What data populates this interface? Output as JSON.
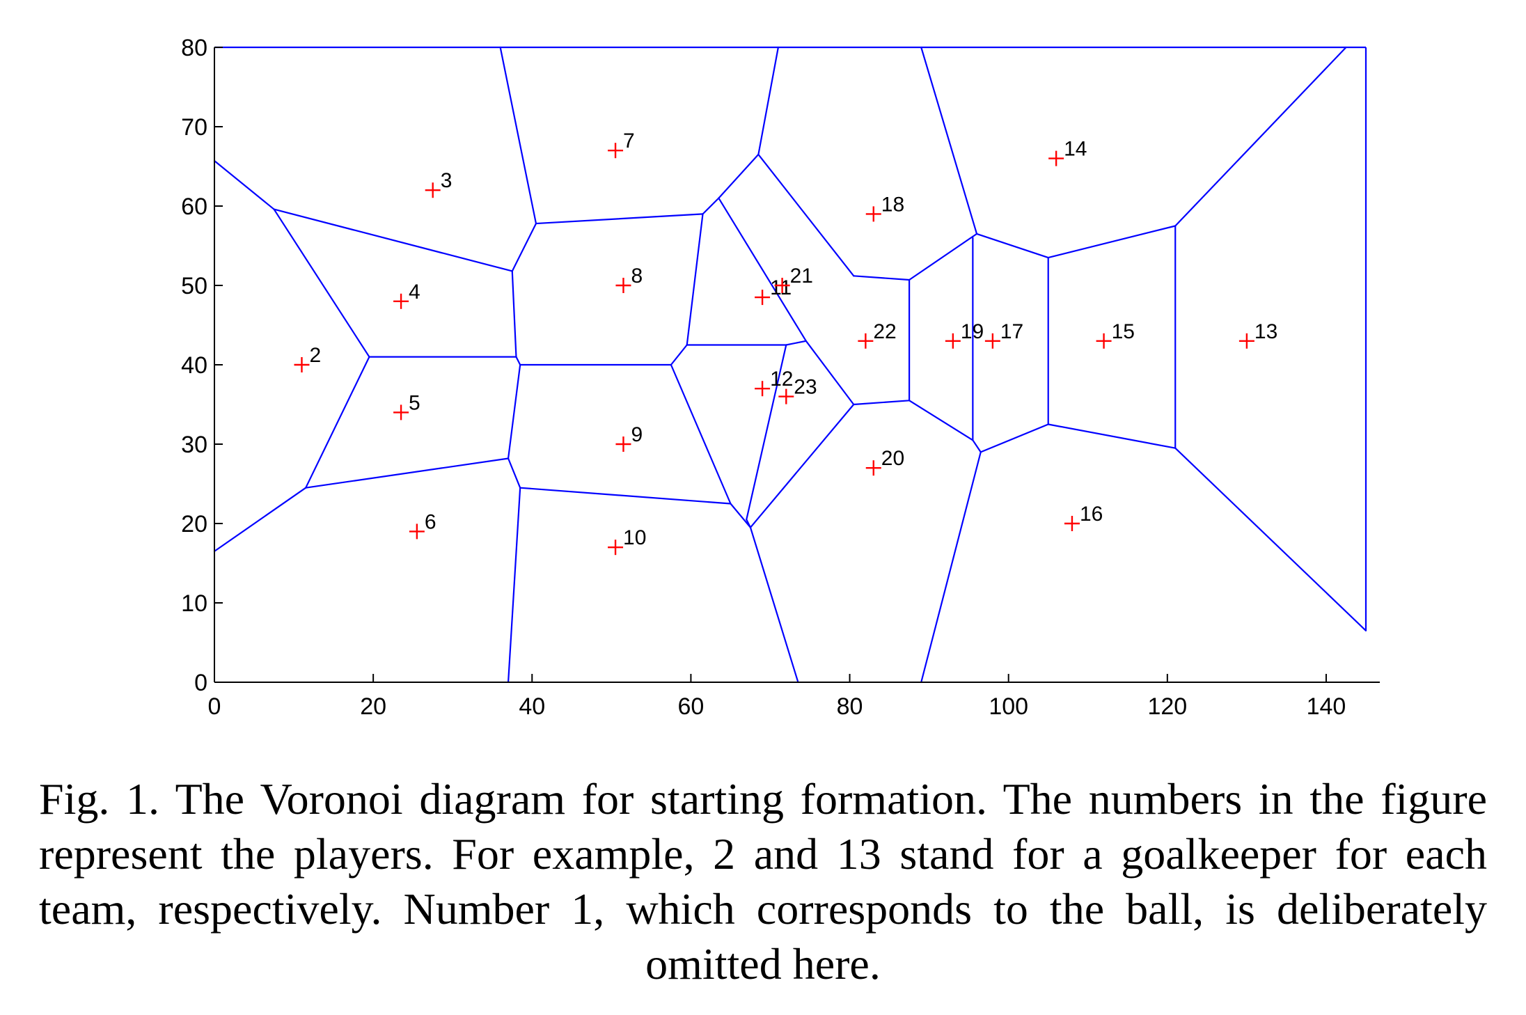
{
  "chart_data": {
    "type": "scatter",
    "title": "",
    "xlabel": "",
    "ylabel": "",
    "xlim": [
      0,
      145
    ],
    "ylim": [
      0,
      80
    ],
    "xticks": [
      0,
      20,
      40,
      60,
      80,
      100,
      120,
      140
    ],
    "yticks": [
      0,
      10,
      20,
      30,
      40,
      50,
      60,
      70,
      80
    ],
    "grid": false,
    "colors": {
      "points": "#ff0000",
      "edges": "#0000ff",
      "axes": "#000000"
    },
    "points": [
      {
        "label": "2",
        "x": 11,
        "y": 40
      },
      {
        "label": "3",
        "x": 27.5,
        "y": 62
      },
      {
        "label": "4",
        "x": 23.5,
        "y": 48
      },
      {
        "label": "5",
        "x": 23.5,
        "y": 34
      },
      {
        "label": "6",
        "x": 25.5,
        "y": 19
      },
      {
        "label": "7",
        "x": 50.5,
        "y": 67
      },
      {
        "label": "8",
        "x": 51.5,
        "y": 50
      },
      {
        "label": "9",
        "x": 51.5,
        "y": 30
      },
      {
        "label": "10",
        "x": 50.5,
        "y": 17
      },
      {
        "label": "11",
        "x": 69,
        "y": 48.5
      },
      {
        "label": "12",
        "x": 69,
        "y": 37
      },
      {
        "label": "13",
        "x": 130,
        "y": 43
      },
      {
        "label": "14",
        "x": 106,
        "y": 66
      },
      {
        "label": "15",
        "x": 112,
        "y": 43
      },
      {
        "label": "16",
        "x": 108,
        "y": 20
      },
      {
        "label": "17",
        "x": 98,
        "y": 43
      },
      {
        "label": "18",
        "x": 83,
        "y": 59
      },
      {
        "label": "19",
        "x": 93,
        "y": 43
      },
      {
        "label": "20",
        "x": 83,
        "y": 27
      },
      {
        "label": "21",
        "x": 71.5,
        "y": 50
      },
      {
        "label": "22",
        "x": 82,
        "y": 43
      },
      {
        "label": "23",
        "x": 72,
        "y": 36
      }
    ],
    "edges": [
      [
        [
          0,
          65.7
        ],
        [
          7.5,
          59.6
        ]
      ],
      [
        [
          7.5,
          59.6
        ],
        [
          37.5,
          51.8
        ]
      ],
      [
        [
          7.5,
          59.6
        ],
        [
          19.5,
          41
        ]
      ],
      [
        [
          19.5,
          41
        ],
        [
          38,
          41
        ]
      ],
      [
        [
          19.5,
          41
        ],
        [
          11.5,
          24.5
        ]
      ],
      [
        [
          0,
          16.5
        ],
        [
          11.5,
          24.5
        ]
      ],
      [
        [
          11.5,
          24.5
        ],
        [
          37,
          28.2
        ]
      ],
      [
        [
          36,
          80
        ],
        [
          40.5,
          57.8
        ]
      ],
      [
        [
          40.5,
          57.8
        ],
        [
          37.5,
          51.8
        ]
      ],
      [
        [
          37.5,
          51.8
        ],
        [
          38,
          41
        ]
      ],
      [
        [
          38,
          41
        ],
        [
          38.5,
          40
        ]
      ],
      [
        [
          38.5,
          40
        ],
        [
          37,
          28.2
        ]
      ],
      [
        [
          37,
          28.2
        ],
        [
          38.5,
          24.5
        ]
      ],
      [
        [
          38.5,
          24.5
        ],
        [
          37,
          0
        ]
      ],
      [
        [
          40.5,
          57.8
        ],
        [
          61.5,
          59
        ]
      ],
      [
        [
          61.5,
          59
        ],
        [
          59.5,
          42.5
        ]
      ],
      [
        [
          59.5,
          42.5
        ],
        [
          57.5,
          40
        ]
      ],
      [
        [
          38.5,
          40
        ],
        [
          57.5,
          40
        ]
      ],
      [
        [
          57.5,
          40
        ],
        [
          65,
          22.5
        ]
      ],
      [
        [
          38.5,
          24.5
        ],
        [
          65,
          22.5
        ]
      ],
      [
        [
          65,
          22.5
        ],
        [
          67.5,
          19.5
        ]
      ],
      [
        [
          71,
          80
        ],
        [
          68.5,
          66.5
        ]
      ],
      [
        [
          68.5,
          66.5
        ],
        [
          63.5,
          61
        ]
      ],
      [
        [
          63.5,
          61
        ],
        [
          61.5,
          59
        ]
      ],
      [
        [
          63.5,
          61
        ],
        [
          74.5,
          43
        ]
      ],
      [
        [
          59.5,
          42.5
        ],
        [
          72,
          42.5
        ]
      ],
      [
        [
          72,
          42.5
        ],
        [
          74.5,
          43
        ]
      ],
      [
        [
          72,
          42.5
        ],
        [
          67,
          20.5
        ]
      ],
      [
        [
          67,
          20.5
        ],
        [
          67.5,
          19.5
        ]
      ],
      [
        [
          67.5,
          19.5
        ],
        [
          73.5,
          0
        ]
      ],
      [
        [
          68.5,
          66.5
        ],
        [
          80.5,
          51.2
        ]
      ],
      [
        [
          80.5,
          51.2
        ],
        [
          87.5,
          50.7
        ]
      ],
      [
        [
          74.5,
          43
        ],
        [
          80.5,
          35
        ]
      ],
      [
        [
          67.5,
          19.5
        ],
        [
          80.5,
          35
        ]
      ],
      [
        [
          80.5,
          35
        ],
        [
          87.5,
          35.5
        ]
      ],
      [
        [
          87.5,
          50.7
        ],
        [
          87.5,
          35.5
        ]
      ],
      [
        [
          89,
          80
        ],
        [
          96,
          56.5
        ]
      ],
      [
        [
          87.5,
          50.7
        ],
        [
          96,
          56.5
        ]
      ],
      [
        [
          96,
          56.5
        ],
        [
          105,
          53.5
        ]
      ],
      [
        [
          95.5,
          56
        ],
        [
          95.5,
          30.5
        ]
      ],
      [
        [
          87.5,
          35.5
        ],
        [
          95.5,
          30.5
        ]
      ],
      [
        [
          95.5,
          30.5
        ],
        [
          96.5,
          29
        ]
      ],
      [
        [
          96.5,
          29
        ],
        [
          105,
          32.5
        ]
      ],
      [
        [
          96.5,
          29
        ],
        [
          89,
          0
        ]
      ],
      [
        [
          105,
          53.5
        ],
        [
          105,
          32.5
        ]
      ],
      [
        [
          105,
          53.5
        ],
        [
          121,
          57.5
        ]
      ],
      [
        [
          105,
          32.5
        ],
        [
          121,
          29.5
        ]
      ],
      [
        [
          121,
          57.5
        ],
        [
          121,
          29.5
        ]
      ],
      [
        [
          121,
          57.5
        ],
        [
          142.5,
          80
        ]
      ],
      [
        [
          121,
          29.5
        ],
        [
          145,
          6.5
        ]
      ]
    ]
  },
  "caption": "Fig. 1. The Voronoi diagram for starting formation.  The numbers in the figure represent the players.  For example, 2 and 13 stand for a goalkeeper for each team, respectively.  Number 1, which corresponds to the ball, is deliberately omitted here."
}
